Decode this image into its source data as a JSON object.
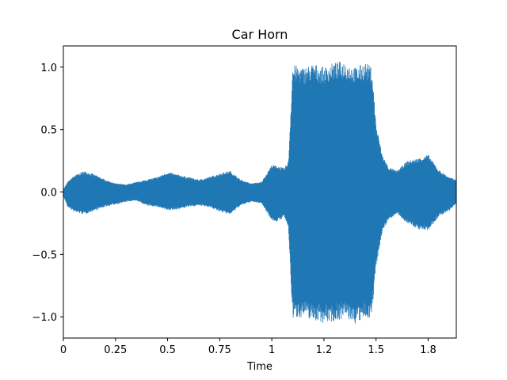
{
  "chart_data": {
    "type": "area",
    "title": "Car Horn",
    "xlabel": "Time",
    "ylabel": "",
    "xlim": [
      0,
      1.885
    ],
    "ylim": [
      -1.17,
      1.17
    ],
    "grid": false,
    "legend": "none",
    "color": "#1f77b4",
    "xticks": [
      {
        "value": 0,
        "label": "0"
      },
      {
        "value": 0.25,
        "label": "0.25"
      },
      {
        "value": 0.5,
        "label": "0.5"
      },
      {
        "value": 0.75,
        "label": "0.75"
      },
      {
        "value": 1.0,
        "label": "1"
      },
      {
        "value": 1.25,
        "label": "1.2"
      },
      {
        "value": 1.5,
        "label": "1.5"
      },
      {
        "value": 1.75,
        "label": "1.8"
      }
    ],
    "yticks": [
      {
        "value": 1.0,
        "label": "1.0"
      },
      {
        "value": 0.5,
        "label": "0.5"
      },
      {
        "value": 0.0,
        "label": "0.0"
      },
      {
        "value": -0.5,
        "label": "−0.5"
      },
      {
        "value": -1.0,
        "label": "−1.0"
      }
    ],
    "envelope": {
      "time": [
        0,
        0.02,
        0.05,
        0.1,
        0.15,
        0.2,
        0.25,
        0.3,
        0.35,
        0.4,
        0.45,
        0.5,
        0.55,
        0.6,
        0.65,
        0.7,
        0.75,
        0.8,
        0.85,
        0.9,
        0.95,
        1.0,
        1.03,
        1.06,
        1.08,
        1.1,
        1.15,
        1.2,
        1.25,
        1.3,
        1.35,
        1.4,
        1.45,
        1.48,
        1.5,
        1.53,
        1.56,
        1.6,
        1.65,
        1.7,
        1.75,
        1.8,
        1.85,
        1.885
      ],
      "upper": [
        0.02,
        0.08,
        0.13,
        0.17,
        0.14,
        0.1,
        0.07,
        0.06,
        0.08,
        0.1,
        0.12,
        0.16,
        0.14,
        0.12,
        0.1,
        0.12,
        0.15,
        0.17,
        0.1,
        0.07,
        0.08,
        0.22,
        0.21,
        0.19,
        0.25,
        1.02,
        1.0,
        1.03,
        1.0,
        1.04,
        1.05,
        1.0,
        1.04,
        1.0,
        0.55,
        0.3,
        0.2,
        0.17,
        0.25,
        0.27,
        0.3,
        0.18,
        0.12,
        0.1
      ],
      "lower": [
        -0.03,
        -0.12,
        -0.16,
        -0.18,
        -0.15,
        -0.12,
        -0.1,
        -0.08,
        -0.07,
        -0.11,
        -0.12,
        -0.15,
        -0.14,
        -0.12,
        -0.11,
        -0.12,
        -0.16,
        -0.18,
        -0.11,
        -0.08,
        -0.09,
        -0.23,
        -0.24,
        -0.2,
        -0.3,
        -1.02,
        -1.0,
        -1.03,
        -1.05,
        -1.04,
        -1.01,
        -1.06,
        -1.02,
        -1.0,
        -0.6,
        -0.32,
        -0.22,
        -0.18,
        -0.25,
        -0.3,
        -0.31,
        -0.2,
        -0.15,
        -0.1
      ]
    }
  }
}
